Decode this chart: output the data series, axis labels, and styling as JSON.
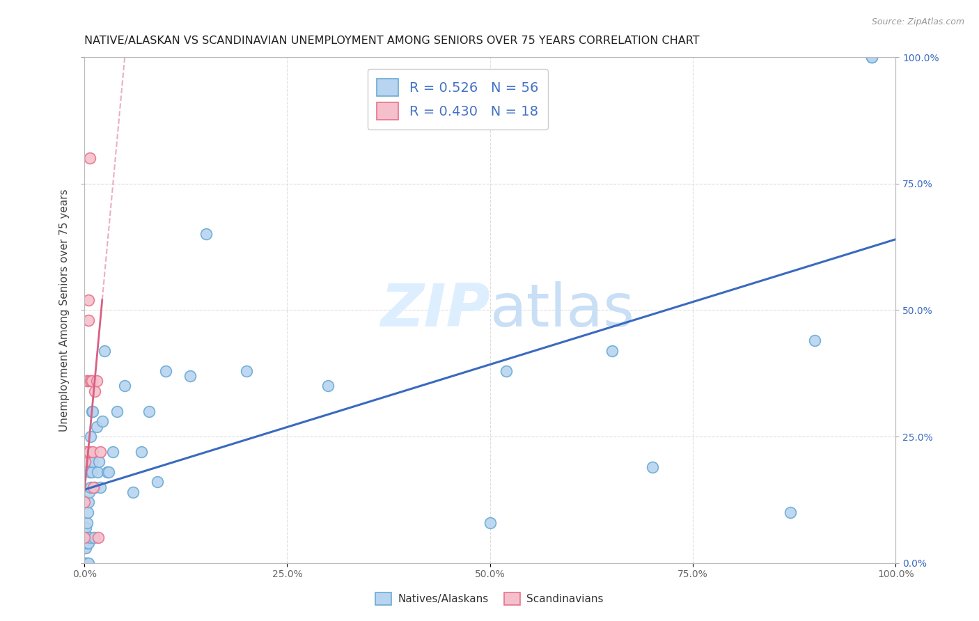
{
  "title": "NATIVE/ALASKAN VS SCANDINAVIAN UNEMPLOYMENT AMONG SENIORS OVER 75 YEARS CORRELATION CHART",
  "source": "Source: ZipAtlas.com",
  "ylabel": "Unemployment Among Seniors over 75 years",
  "xlim": [
    0,
    1.0
  ],
  "ylim": [
    0,
    1.0
  ],
  "xticks": [
    0.0,
    0.25,
    0.5,
    0.75,
    1.0
  ],
  "xticklabels": [
    "0.0%",
    "",
    "",
    "",
    "100.0%"
  ],
  "yticks_left": [
    0.0,
    0.25,
    0.5,
    0.75,
    1.0
  ],
  "yticklabels_left": [
    "",
    "",
    "",
    "",
    ""
  ],
  "yticks_right": [
    0.0,
    0.25,
    0.5,
    0.75,
    1.0
  ],
  "yticklabels_right": [
    "0.0%",
    "25.0%",
    "50.0%",
    "75.0%",
    "100.0%"
  ],
  "native_R": 0.526,
  "native_N": 56,
  "scand_R": 0.43,
  "scand_N": 18,
  "native_color": "#b8d4f0",
  "native_edge_color": "#6aaad4",
  "scand_color": "#f5c0cc",
  "scand_edge_color": "#e8728c",
  "trendline_native_color": "#3a6abf",
  "trendline_scand_color": "#d95f82",
  "legend_text_color": "#4472c4",
  "watermark_color": "#ddeeff",
  "background_color": "#ffffff",
  "grid_color": "#dddddd",
  "native_x": [
    0.0,
    0.0,
    0.001,
    0.001,
    0.002,
    0.002,
    0.002,
    0.003,
    0.003,
    0.003,
    0.004,
    0.004,
    0.004,
    0.005,
    0.005,
    0.005,
    0.006,
    0.006,
    0.007,
    0.007,
    0.008,
    0.008,
    0.009,
    0.009,
    0.01,
    0.01,
    0.012,
    0.013,
    0.015,
    0.016,
    0.018,
    0.02,
    0.022,
    0.025,
    0.028,
    0.03,
    0.035,
    0.04,
    0.05,
    0.06,
    0.07,
    0.08,
    0.09,
    0.1,
    0.13,
    0.15,
    0.2,
    0.3,
    0.5,
    0.52,
    0.65,
    0.7,
    0.87,
    0.9,
    0.97,
    0.97
  ],
  "native_y": [
    0.03,
    0.06,
    0.0,
    0.04,
    0.0,
    0.03,
    0.07,
    0.0,
    0.04,
    0.08,
    0.0,
    0.05,
    0.1,
    0.0,
    0.04,
    0.12,
    0.14,
    0.2,
    0.05,
    0.18,
    0.15,
    0.25,
    0.18,
    0.3,
    0.2,
    0.3,
    0.05,
    0.15,
    0.27,
    0.18,
    0.2,
    0.15,
    0.28,
    0.42,
    0.18,
    0.18,
    0.22,
    0.3,
    0.35,
    0.14,
    0.22,
    0.3,
    0.16,
    0.38,
    0.37,
    0.65,
    0.38,
    0.35,
    0.08,
    0.38,
    0.42,
    0.19,
    0.1,
    0.44,
    1.0,
    1.0
  ],
  "scand_x": [
    0.0,
    0.0,
    0.001,
    0.002,
    0.003,
    0.004,
    0.005,
    0.005,
    0.006,
    0.007,
    0.008,
    0.009,
    0.01,
    0.011,
    0.013,
    0.015,
    0.017,
    0.02
  ],
  "scand_y": [
    0.05,
    0.12,
    0.2,
    0.22,
    0.36,
    0.36,
    0.48,
    0.52,
    0.22,
    0.8,
    0.36,
    0.36,
    0.22,
    0.15,
    0.34,
    0.36,
    0.05,
    0.22
  ],
  "trendline_native_x0": 0.0,
  "trendline_native_y0": 0.145,
  "trendline_native_x1": 1.0,
  "trendline_native_y1": 0.64,
  "trendline_scand_x0": 0.0,
  "trendline_scand_y0": 0.14,
  "trendline_scand_x1": 0.022,
  "trendline_scand_y1": 0.52,
  "marker_size": 130
}
